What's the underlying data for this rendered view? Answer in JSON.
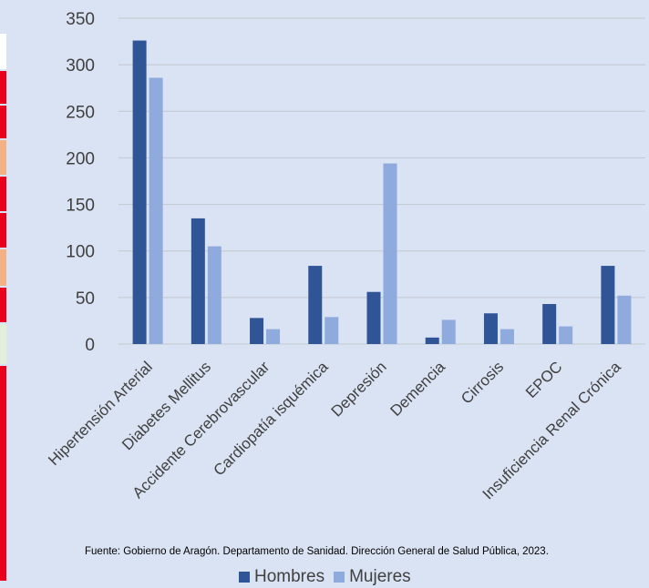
{
  "chart_data": {
    "type": "bar",
    "categories": [
      "Hipertensión Arterial",
      "Diabetes Mellitus",
      "Accidente Cerebrovascular",
      "Cardiopatía isquémica",
      "Depresión",
      "Demencia",
      "Cirrosis",
      "EPOC",
      "Insuficiencia Renal Crónica"
    ],
    "series": [
      {
        "name": "Hombres",
        "color": "#2f5597",
        "values": [
          326,
          135,
          28,
          84,
          56,
          7,
          33,
          43,
          84
        ]
      },
      {
        "name": "Mujeres",
        "color": "#8faadc",
        "values": [
          286,
          105,
          16,
          29,
          194,
          26,
          16,
          19,
          52
        ]
      }
    ],
    "ylim": [
      0,
      350
    ],
    "yticks": [
      0,
      50,
      100,
      150,
      200,
      250,
      300,
      350
    ],
    "grid": true,
    "legend_position": "bottom",
    "source": "Fuente: Gobierno de Aragón. Departamento de Sanidad. Dirección General de Salud Pública, 2023."
  },
  "colors": {
    "background": "#dae3f3",
    "gridline": "#c2c8d2",
    "axis_text": "#404040",
    "edge_strips": [
      "#ffffff",
      "#e8001c",
      "#e8001c",
      "#f4b183",
      "#e8001c",
      "#e8001c",
      "#f4b183",
      "#e8001c",
      "#e2efd9",
      "#e8001c"
    ]
  }
}
